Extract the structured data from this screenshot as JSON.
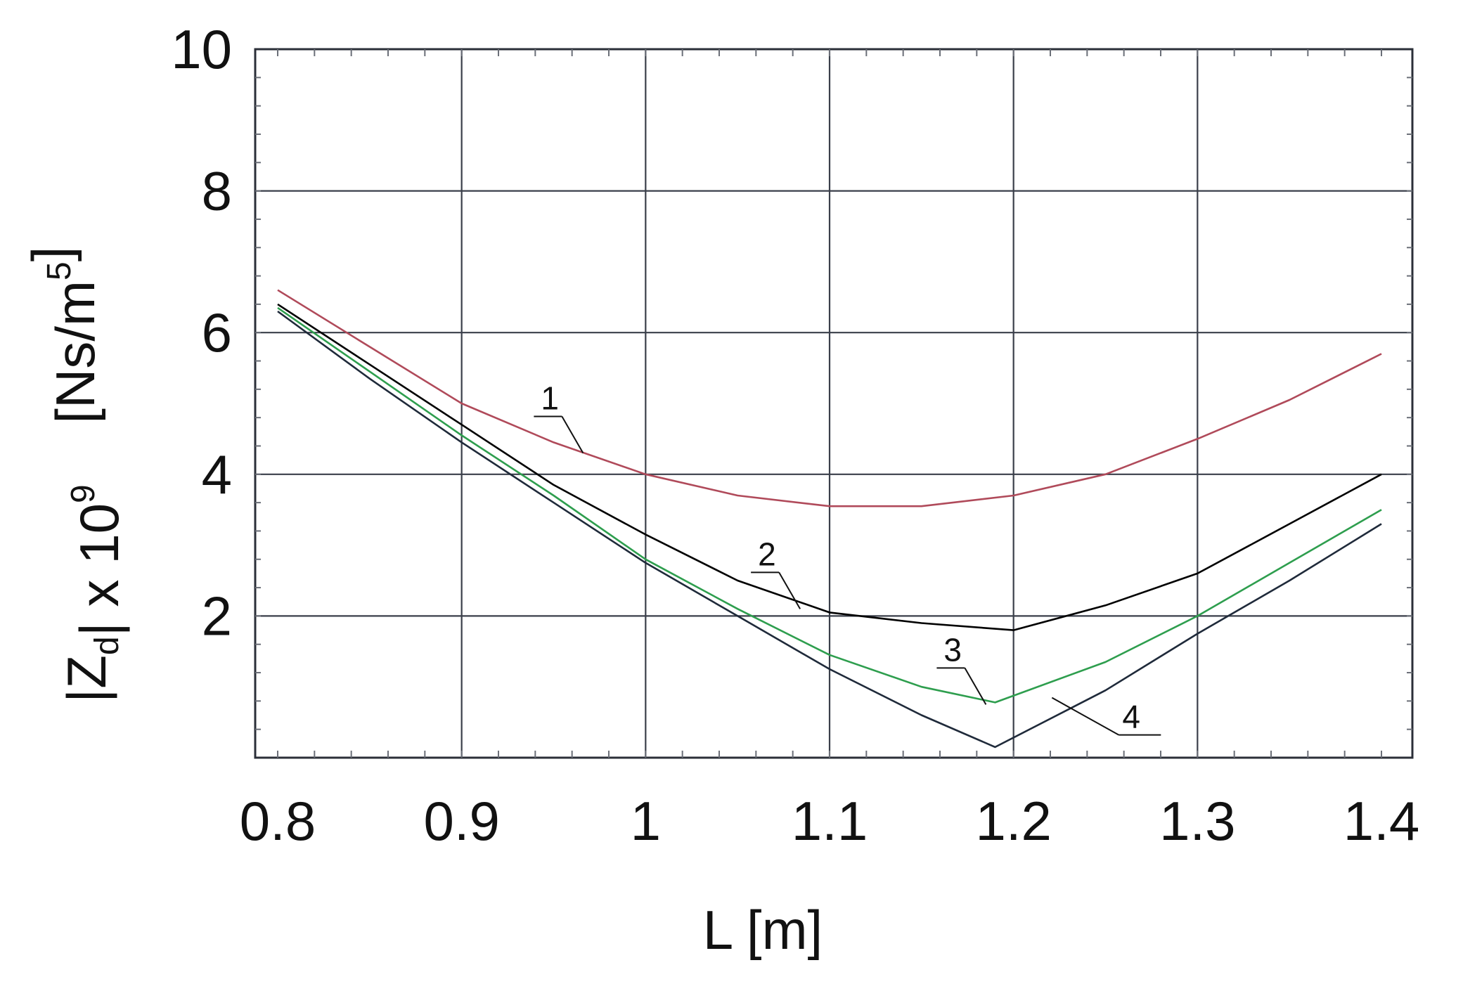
{
  "chart_data": {
    "type": "line",
    "xlabel": "L [m]",
    "ylabel": {
      "parts": [
        {
          "text": "|Z",
          "style": "normal"
        },
        {
          "text": "d",
          "style": "sub"
        },
        {
          "text": "| x 10",
          "style": "normal"
        },
        {
          "text": "9",
          "style": "sup"
        },
        {
          "text": "    [Ns/m",
          "style": "normal"
        },
        {
          "text": "5",
          "style": "sup"
        },
        {
          "text": "]",
          "style": "normal"
        }
      ]
    },
    "xlim": [
      0.8,
      1.4
    ],
    "ylim": [
      0,
      10
    ],
    "x_ticks": [
      0.8,
      0.9,
      1.0,
      1.1,
      1.2,
      1.3,
      1.4
    ],
    "x_tick_labels": [
      "0.8",
      "0.9",
      "1",
      "1.1",
      "1.2",
      "1.3",
      "1.4"
    ],
    "y_ticks": [
      2,
      4,
      6,
      8,
      10
    ],
    "y_tick_labels": [
      "2",
      "4",
      "6",
      "8",
      "10"
    ],
    "x_grid": [
      0.9,
      1.0,
      1.1,
      1.2,
      1.3
    ],
    "y_grid": [
      2,
      4,
      6,
      8
    ],
    "y_minor_ticks": [
      0.8,
      3.2
    ],
    "x_axis_range_note": "data x-range 0.8 to 1.4; plot frame extends slightly beyond",
    "frame_x": [
      0.7875,
      1.416
    ],
    "frame_y": [
      0.0,
      10.0
    ],
    "grid": true,
    "series": [
      {
        "name": "1",
        "color": "#b04a5a",
        "x": [
          0.8,
          0.85,
          0.9,
          0.95,
          1.0,
          1.05,
          1.1,
          1.15,
          1.2,
          1.25,
          1.3,
          1.35,
          1.4
        ],
        "y": [
          6.6,
          5.8,
          5.0,
          4.45,
          4.0,
          3.7,
          3.55,
          3.55,
          3.7,
          4.0,
          4.5,
          5.05,
          5.7
        ]
      },
      {
        "name": "2",
        "color": "#000000",
        "x": [
          0.8,
          0.85,
          0.9,
          0.95,
          1.0,
          1.05,
          1.1,
          1.15,
          1.2,
          1.25,
          1.3,
          1.35,
          1.4
        ],
        "y": [
          6.4,
          5.55,
          4.7,
          3.85,
          3.15,
          2.5,
          2.05,
          1.9,
          1.8,
          2.15,
          2.6,
          3.3,
          4.0
        ]
      },
      {
        "name": "3",
        "color": "#2e9e4e",
        "x": [
          0.8,
          0.85,
          0.9,
          0.95,
          1.0,
          1.05,
          1.1,
          1.15,
          1.19,
          1.25,
          1.3,
          1.35,
          1.4
        ],
        "y": [
          6.35,
          5.45,
          4.55,
          3.7,
          2.8,
          2.1,
          1.45,
          1.0,
          0.78,
          1.35,
          2.0,
          2.75,
          3.5
        ]
      },
      {
        "name": "4",
        "color": "#1f2a3a",
        "x": [
          0.8,
          0.85,
          0.9,
          0.95,
          1.0,
          1.05,
          1.1,
          1.15,
          1.19,
          1.25,
          1.3,
          1.35,
          1.4
        ],
        "y": [
          6.3,
          5.35,
          4.45,
          3.6,
          2.75,
          2.0,
          1.25,
          0.6,
          0.15,
          0.95,
          1.75,
          2.5,
          3.3
        ]
      }
    ],
    "curve_labels": [
      {
        "text": "1",
        "series": "1",
        "x": 0.966,
        "y": 4.3
      },
      {
        "text": "2",
        "series": "2",
        "x": 1.084,
        "y": 2.1
      },
      {
        "text": "3",
        "series": "3",
        "x": 1.185,
        "y": 0.75
      },
      {
        "text": "4",
        "series": "4",
        "x": 1.24,
        "y": 0.4
      }
    ]
  }
}
